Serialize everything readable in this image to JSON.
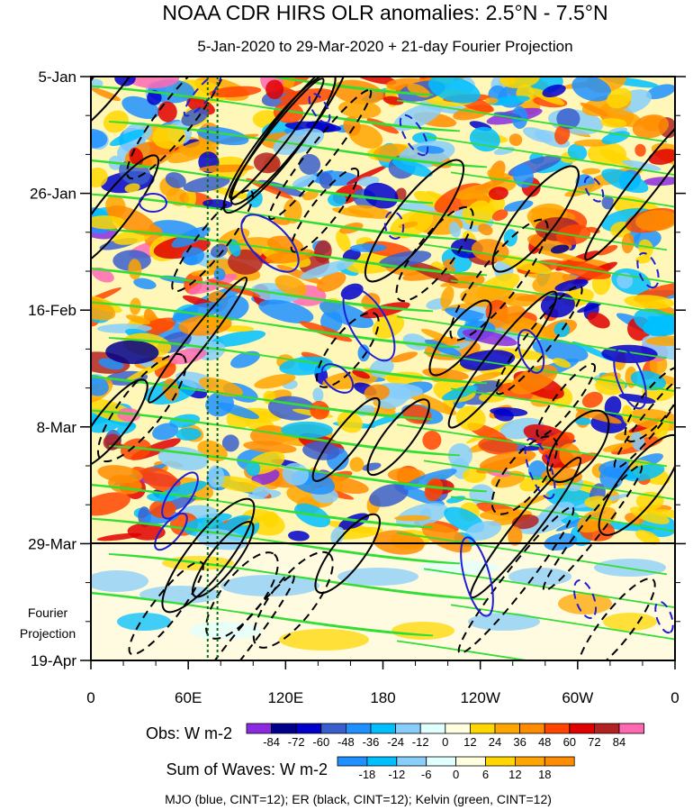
{
  "chart_data": {
    "type": "heatmap",
    "title": "NOAA CDR HIRS OLR anomalies: 2.5°N - 7.5°N",
    "subtitle": "5-Jan-2020 to 29-Mar-2020 + 21-day Fourier Projection",
    "x_ticks": [
      "0",
      "60E",
      "120E",
      "180",
      "120W",
      "60W",
      "0"
    ],
    "x_range": [
      0,
      360
    ],
    "y_ticks": [
      "5-Jan",
      "26-Jan",
      "16-Feb",
      "8-Mar",
      "29-Mar"
    ],
    "y_bottom_label": "19-Apr",
    "projection_label_line1": "Fourier",
    "projection_label_line2": "Projection",
    "days_total": 105,
    "obs_days": 84,
    "obs_colorbar": {
      "label": "Obs: W m-2",
      "ticks": [
        "-84",
        "-72",
        "-60",
        "-48",
        "-36",
        "-24",
        "-12",
        "0",
        "12",
        "24",
        "36",
        "48",
        "60",
        "72",
        "84"
      ],
      "colors": [
        "#8a2be2",
        "#00008b",
        "#0000cd",
        "#3a5fcd",
        "#1e90ff",
        "#00bfff",
        "#87cefa",
        "#e0ffff",
        "#ffffe0",
        "#ffd700",
        "#ffa500",
        "#ff8c00",
        "#ff4500",
        "#e00000",
        "#b22222",
        "#ff69b4"
      ]
    },
    "waves_colorbar": {
      "label": "Sum of Waves: W m-2",
      "ticks": [
        "-18",
        "-12",
        "-6",
        "0",
        "6",
        "12",
        "18"
      ],
      "colors": [
        "#1e90ff",
        "#00bfff",
        "#87cefa",
        "#e0ffff",
        "#ffffe0",
        "#ffd700",
        "#ffa500",
        "#ff8c00"
      ]
    },
    "legend_text": "MJO (blue, CINT=12); ER (black, CINT=12); Kelvin (green, CINT=12)",
    "series": [
      {
        "name": "MJO",
        "color": "#1f1fd6"
      },
      {
        "name": "ER",
        "color": "#000000"
      },
      {
        "name": "Kelvin",
        "color": "#33dd33"
      }
    ],
    "vertical_lines_lon": [
      72,
      78
    ]
  }
}
